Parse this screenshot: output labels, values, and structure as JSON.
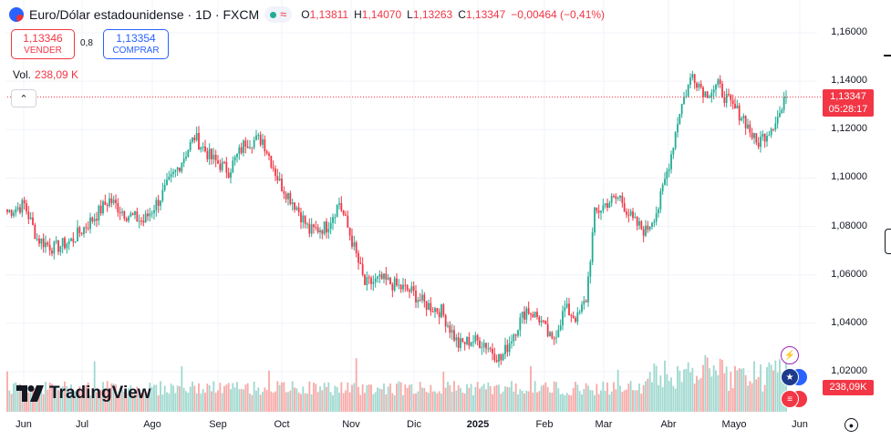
{
  "header": {
    "symbol": "Euro/Dólar estadounidense · 1D · FXCM",
    "ohlc": [
      {
        "k": "O",
        "v": "1,13811"
      },
      {
        "k": "H",
        "v": "1,14070"
      },
      {
        "k": "L",
        "v": "1,13263"
      },
      {
        "k": "C",
        "v": "1,13347"
      },
      {
        "k": "",
        "v": "−0,00464 (−0,41%)"
      }
    ],
    "wave_glyph": "≈"
  },
  "trade": {
    "sell_price": "1,13346",
    "sell_label": "VENDER",
    "spread": "0,8",
    "buy_price": "1,13354",
    "buy_label": "COMPRAR"
  },
  "volume": {
    "label": "Vol.",
    "value": "238,09 K"
  },
  "collapse_glyph": "⌃",
  "y_axis": [
    "1,16000",
    "1,14000",
    "1,12000",
    "1,10000",
    "1,08000",
    "1,06000",
    "1,04000",
    "1,02000"
  ],
  "x_axis": [
    {
      "label": "Jun",
      "bold": false
    },
    {
      "label": "Jul",
      "bold": false
    },
    {
      "label": "Ago",
      "bold": false
    },
    {
      "label": "Sep",
      "bold": false
    },
    {
      "label": "Oct",
      "bold": false
    },
    {
      "label": "Nov",
      "bold": false
    },
    {
      "label": "Dic",
      "bold": false
    },
    {
      "label": "2025",
      "bold": true
    },
    {
      "label": "Feb",
      "bold": false
    },
    {
      "label": "Mar",
      "bold": false
    },
    {
      "label": "Abr",
      "bold": false
    },
    {
      "label": "Mayo",
      "bold": false
    },
    {
      "label": "Jun",
      "bold": false
    }
  ],
  "last_price": {
    "price": "1,13347",
    "countdown": "05:28:17",
    "value": 1.13347
  },
  "volume_tag": "238,09K",
  "logo_text": "TradingView",
  "colors": {
    "up": "#22ab94",
    "down": "#f23645",
    "vol_up": "#9fd8cf",
    "vol_down": "#f7a9a7"
  },
  "chart_data": {
    "type": "candlestick",
    "title": "Euro/Dólar estadounidense · 1D · FXCM",
    "ylim": [
      1.0135,
      1.1635
    ],
    "close_anchors": [
      [
        0,
        1.086
      ],
      [
        8,
        1.089
      ],
      [
        14,
        1.075
      ],
      [
        22,
        1.071
      ],
      [
        30,
        1.074
      ],
      [
        40,
        1.083
      ],
      [
        48,
        1.091
      ],
      [
        56,
        1.085
      ],
      [
        64,
        1.082
      ],
      [
        72,
        1.092
      ],
      [
        80,
        1.104
      ],
      [
        88,
        1.117
      ],
      [
        96,
        1.108
      ],
      [
        104,
        1.103
      ],
      [
        112,
        1.115
      ],
      [
        120,
        1.116
      ],
      [
        128,
        1.098
      ],
      [
        136,
        1.088
      ],
      [
        142,
        1.078
      ],
      [
        150,
        1.08
      ],
      [
        156,
        1.09
      ],
      [
        162,
        1.074
      ],
      [
        168,
        1.056
      ],
      [
        176,
        1.058
      ],
      [
        184,
        1.055
      ],
      [
        190,
        1.053
      ],
      [
        196,
        1.048
      ],
      [
        204,
        1.045
      ],
      [
        212,
        1.031
      ],
      [
        218,
        1.033
      ],
      [
        224,
        1.032
      ],
      [
        232,
        1.025
      ],
      [
        238,
        1.036
      ],
      [
        244,
        1.046
      ],
      [
        250,
        1.042
      ],
      [
        256,
        1.032
      ],
      [
        262,
        1.046
      ],
      [
        268,
        1.042
      ],
      [
        272,
        1.05
      ],
      [
        276,
        1.085
      ],
      [
        282,
        1.09
      ],
      [
        288,
        1.092
      ],
      [
        294,
        1.082
      ],
      [
        300,
        1.078
      ],
      [
        306,
        1.088
      ],
      [
        312,
        1.11
      ],
      [
        316,
        1.128
      ],
      [
        322,
        1.143
      ],
      [
        328,
        1.135
      ],
      [
        334,
        1.138
      ],
      [
        340,
        1.13
      ],
      [
        346,
        1.125
      ],
      [
        352,
        1.114
      ],
      [
        358,
        1.12
      ],
      [
        364,
        1.128
      ],
      [
        366,
        1.1335
      ]
    ],
    "n_bars": 367
  }
}
